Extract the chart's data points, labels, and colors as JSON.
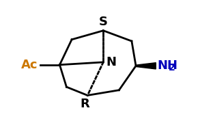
{
  "bg_color": "#ffffff",
  "line_color": "#000000",
  "label_color_S": "#000000",
  "label_color_N": "#000000",
  "label_color_R": "#000000",
  "label_color_Ac": "#cc7700",
  "label_color_NH2": "#0000bb",
  "S_label": "S",
  "N_label": "N",
  "R_label": "R",
  "Ac_label": "Ac",
  "NH2_label": "NH",
  "NH2_sub": "2",
  "figsize": [
    2.93,
    1.93
  ],
  "dpi": 100
}
